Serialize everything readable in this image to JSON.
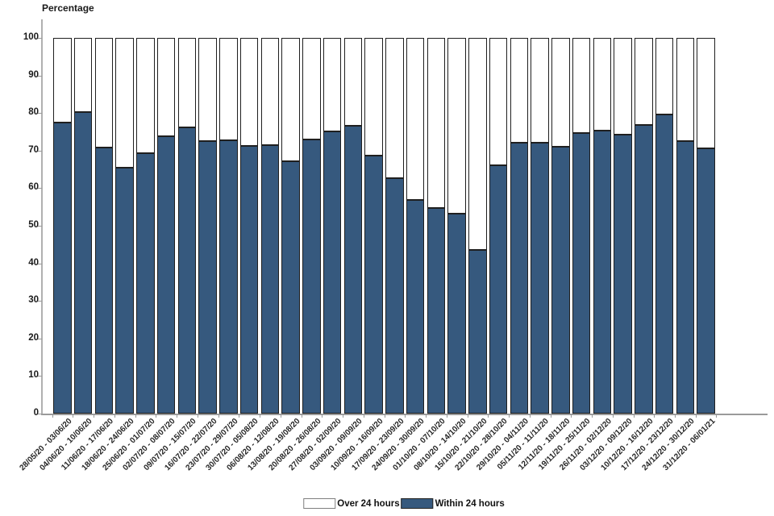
{
  "title": "Percentage",
  "colors": {
    "within_fill": "#36597E",
    "over_fill": "#FFFFFF",
    "bar_border": "#1F1F1F",
    "axis_line": "#9A9A9A",
    "text": "#1A1A1A"
  },
  "legend": [
    {
      "label": "Over 24 hours",
      "color": "#FFFFFF",
      "border": "#7F7F7F"
    },
    {
      "label": "Within 24 hours",
      "color": "#36597E",
      "border": "#222222"
    }
  ],
  "chart_data": {
    "type": "bar",
    "stacked": true,
    "title": "Percentage",
    "xlabel": "",
    "ylabel": "Percentage",
    "ylim": [
      0,
      100
    ],
    "yticks": [
      0,
      10,
      20,
      30,
      40,
      50,
      60,
      70,
      80,
      90,
      100
    ],
    "grid": false,
    "legend_position": "bottom",
    "categories": [
      "28/05/20 - 03/06/20",
      "04/06/20 - 10/06/20",
      "11/06/20 - 17/06/20",
      "18/06/20 - 24/06/20",
      "25/06/20 - 01/07/20",
      "02/07/20 - 08/07/20",
      "09/07/20 - 15/07/20",
      "16/07/20 - 22/07/20",
      "23/07/20 - 29/07/20",
      "30/07/20 - 05/08/20",
      "06/08/20 - 12/08/20",
      "13/08/20 - 19/08/20",
      "20/08/20 - 26/08/20",
      "27/08/20 - 02/09/20",
      "03/09/20 - 09/09/20",
      "10/09/20 - 16/09/20",
      "17/09/20 - 23/09/20",
      "24/09/20 - 30/09/20",
      "01/10/20 - 07/10/20",
      "08/10/20 - 14/10/20",
      "15/10/20 - 21/10/20",
      "22/10/20 - 28/10/20",
      "29/10/20 - 04/11/20",
      "05/11/20 - 11/11/20",
      "12/11/20 - 18/11/20",
      "19/11/20 - 25/11/20",
      "26/11/20 - 02/12/20",
      "03/12/20 - 09/12/20",
      "10/12/20 - 16/12/20",
      "17/12/20 - 23/12/20",
      "24/12/20 - 30/12/20",
      "31/12/20 - 06/01/21"
    ],
    "series": [
      {
        "name": "Within 24 hours",
        "color": "#36597E",
        "values": [
          77.4,
          80.2,
          70.8,
          65.5,
          69.4,
          73.9,
          76.2,
          72.5,
          72.8,
          71.2,
          71.5,
          67.2,
          73.0,
          75.2,
          76.6,
          68.6,
          62.6,
          56.9,
          54.7,
          53.3,
          43.5,
          66.1,
          72.2,
          72.0,
          71.0,
          74.6,
          75.3,
          74.3,
          76.9,
          79.7,
          72.6,
          70.7
        ]
      },
      {
        "name": "Over 24 hours",
        "color": "#FFFFFF",
        "values": [
          22.6,
          19.8,
          29.2,
          34.5,
          30.6,
          26.1,
          23.8,
          27.5,
          27.2,
          28.8,
          28.5,
          32.8,
          27.0,
          24.8,
          23.4,
          31.4,
          37.4,
          43.1,
          45.3,
          46.7,
          56.5,
          33.9,
          27.8,
          28.0,
          29.0,
          25.4,
          24.7,
          25.7,
          23.1,
          20.3,
          27.4,
          29.3
        ]
      }
    ]
  }
}
